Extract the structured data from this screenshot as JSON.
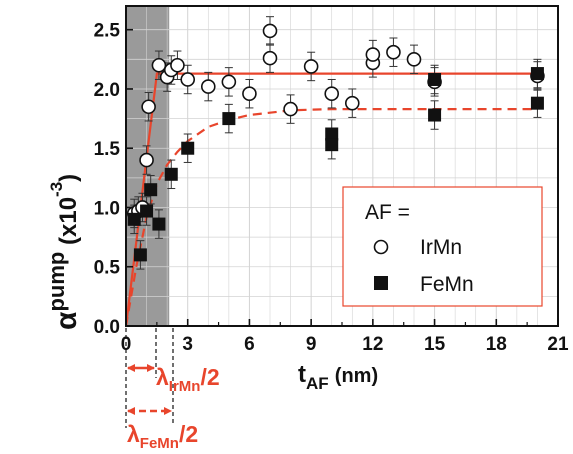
{
  "chart_data": {
    "type": "scatter",
    "title": "",
    "xlabel": {
      "main": "t",
      "sub": "AF",
      "unit": "(nm)"
    },
    "ylabel": {
      "main": "α",
      "sup": "pump",
      "unit_pre": "(x10",
      "unit_exp": "-3",
      "unit_post": ")"
    },
    "xlim": [
      0,
      21
    ],
    "ylim": [
      0,
      2.7
    ],
    "xticks": [
      "0",
      "3",
      "6",
      "9",
      "12",
      "15",
      "18",
      "21"
    ],
    "xtick_values": [
      0,
      3,
      6,
      9,
      12,
      15,
      18,
      21
    ],
    "yticks": [
      "0.0",
      "0.5",
      "1.0",
      "1.5",
      "2.0",
      "2.5"
    ],
    "ytick_values": [
      0,
      0.5,
      1.0,
      1.5,
      2.0,
      2.5
    ],
    "grid": true,
    "shaded_region": {
      "x": [
        0,
        2.1
      ],
      "color": "#9a9a9a"
    },
    "legend": {
      "title": "AF =",
      "entries": [
        "IrMn",
        "FeMn"
      ],
      "placement": "lower-right"
    },
    "series": [
      {
        "name": "IrMn",
        "marker": "open-circle",
        "points": [
          {
            "x": 0.4,
            "y": 0.95,
            "err": 0.12
          },
          {
            "x": 0.6,
            "y": 0.97,
            "err": 0.12
          },
          {
            "x": 0.8,
            "y": 1.0,
            "err": 0.12
          },
          {
            "x": 1.0,
            "y": 1.4,
            "err": 0.12
          },
          {
            "x": 1.1,
            "y": 1.85,
            "err": 0.12
          },
          {
            "x": 1.6,
            "y": 2.2,
            "err": 0.12
          },
          {
            "x": 2.0,
            "y": 2.1,
            "err": 0.12
          },
          {
            "x": 2.2,
            "y": 2.16,
            "err": 0.12
          },
          {
            "x": 2.5,
            "y": 2.2,
            "err": 0.12
          },
          {
            "x": 3.0,
            "y": 2.08,
            "err": 0.12
          },
          {
            "x": 4.0,
            "y": 2.02,
            "err": 0.12
          },
          {
            "x": 5.0,
            "y": 2.06,
            "err": 0.12
          },
          {
            "x": 6.0,
            "y": 1.96,
            "err": 0.12
          },
          {
            "x": 7.0,
            "y": 2.49,
            "err": 0.12
          },
          {
            "x": 7.0,
            "y": 2.26,
            "err": 0.12
          },
          {
            "x": 8.0,
            "y": 1.83,
            "err": 0.12
          },
          {
            "x": 9.0,
            "y": 2.19,
            "err": 0.12
          },
          {
            "x": 10.0,
            "y": 1.96,
            "err": 0.12
          },
          {
            "x": 11.0,
            "y": 1.88,
            "err": 0.12
          },
          {
            "x": 12.0,
            "y": 2.22,
            "err": 0.12
          },
          {
            "x": 12.0,
            "y": 2.29,
            "err": 0.12
          },
          {
            "x": 13.0,
            "y": 2.31,
            "err": 0.12
          },
          {
            "x": 14.0,
            "y": 2.25,
            "err": 0.12
          },
          {
            "x": 15.0,
            "y": 2.06,
            "err": 0.12
          },
          {
            "x": 20.0,
            "y": 2.11,
            "err": 0.12
          }
        ]
      },
      {
        "name": "FeMn",
        "marker": "filled-square",
        "points": [
          {
            "x": 0.4,
            "y": 0.9,
            "err": 0.12
          },
          {
            "x": 0.7,
            "y": 0.6,
            "err": 0.12
          },
          {
            "x": 1.0,
            "y": 0.97,
            "err": 0.12
          },
          {
            "x": 1.2,
            "y": 1.15,
            "err": 0.12
          },
          {
            "x": 1.6,
            "y": 0.86,
            "err": 0.12
          },
          {
            "x": 2.2,
            "y": 1.28,
            "err": 0.12
          },
          {
            "x": 3.0,
            "y": 1.5,
            "err": 0.12
          },
          {
            "x": 5.0,
            "y": 1.75,
            "err": 0.12
          },
          {
            "x": 10.0,
            "y": 1.62,
            "err": 0.12
          },
          {
            "x": 10.0,
            "y": 1.53,
            "err": 0.12
          },
          {
            "x": 15.0,
            "y": 2.08,
            "err": 0.12
          },
          {
            "x": 15.0,
            "y": 1.78,
            "err": 0.12
          },
          {
            "x": 20.0,
            "y": 2.13,
            "err": 0.12
          },
          {
            "x": 20.0,
            "y": 1.88,
            "err": 0.12
          }
        ]
      }
    ],
    "fits": [
      {
        "name": "IrMn fit",
        "style": "solid",
        "color": "#e8452c",
        "points": [
          [
            0,
            0
          ],
          [
            1.5,
            2.13
          ],
          [
            20,
            2.13
          ]
        ]
      },
      {
        "name": "FeMn fit",
        "style": "dashed",
        "color": "#e8452c",
        "points": [
          [
            0,
            0
          ],
          [
            0.5,
            0.5
          ],
          [
            1,
            0.92
          ],
          [
            1.5,
            1.2
          ],
          [
            2,
            1.36
          ],
          [
            2.5,
            1.47
          ],
          [
            3,
            1.56
          ],
          [
            4,
            1.68
          ],
          [
            5,
            1.74
          ],
          [
            6,
            1.78
          ],
          [
            7,
            1.8
          ],
          [
            8,
            1.82
          ],
          [
            10,
            1.83
          ],
          [
            12,
            1.83
          ],
          [
            20,
            1.83
          ]
        ]
      }
    ],
    "annotations": [
      {
        "main": "λ",
        "sub": "IrMn",
        "rest": "/2",
        "span": [
          0,
          1.5
        ],
        "style": "solid"
      },
      {
        "main": "λ",
        "sub": "FeMn",
        "rest": "/2",
        "span": [
          0,
          2.6
        ],
        "style": "dashed"
      }
    ],
    "colors": {
      "accent": "#e8452c",
      "shade": "#9a9a9a",
      "grid": "#d3d3d3",
      "axis": "#111111"
    }
  }
}
